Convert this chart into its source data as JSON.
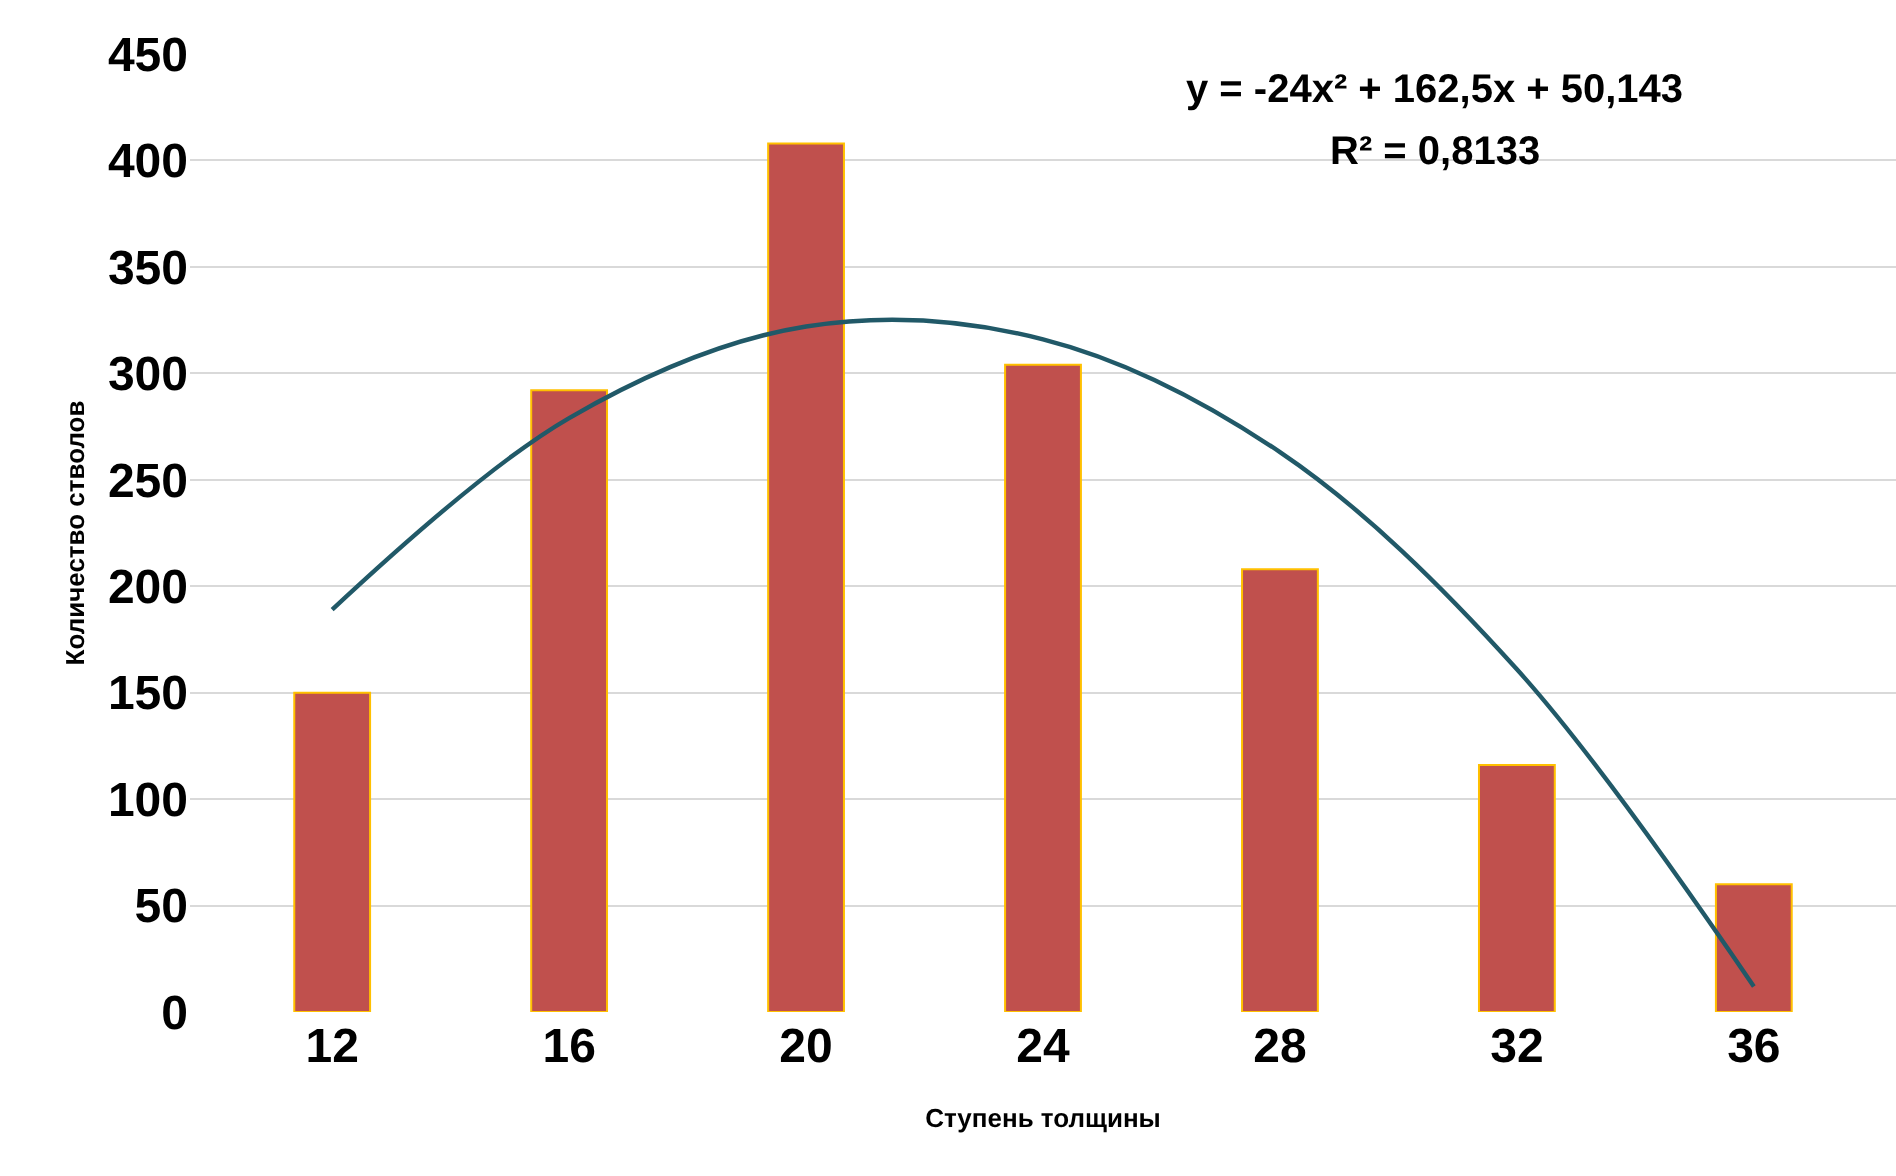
{
  "chart_data": {
    "type": "bar",
    "xlabel": "Ступень толщины",
    "ylabel": "Количество стволов",
    "categories": [
      "12",
      "16",
      "20",
      "24",
      "28",
      "32",
      "36"
    ],
    "series": [
      {
        "color": "#c0504d",
        "values": [
          150,
          292,
          408,
          304,
          208,
          116,
          60
        ]
      },
      {
        "type": "line",
        "color": "#215968",
        "values": [
          189,
          279,
          322,
          316,
          263,
          161,
          12
        ]
      }
    ],
    "ylim": [
      0,
      450
    ],
    "yticks": [
      0,
      50,
      100,
      150,
      200,
      250,
      300,
      350,
      400,
      450
    ],
    "grid": "y",
    "marker": "none",
    "annotations": [
      "y = -24x² + 162,5x + 50,143",
      "R² = 0,8133"
    ]
  }
}
